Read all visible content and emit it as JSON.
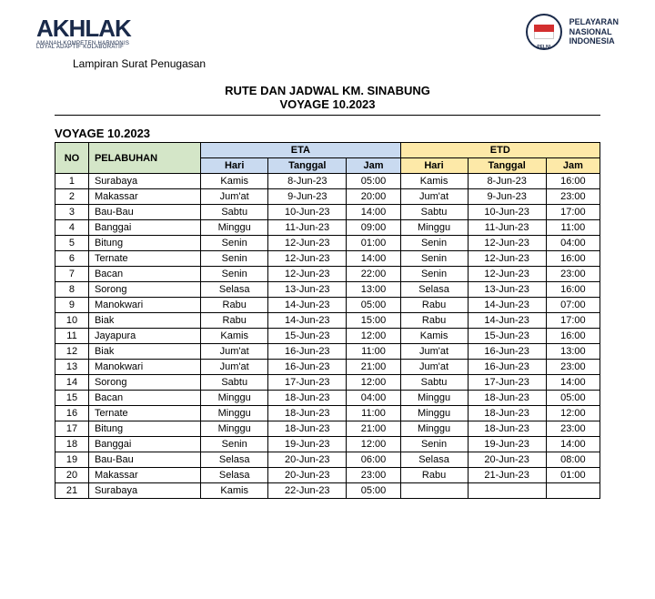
{
  "header": {
    "logo_text": "AKHLAK",
    "logo_subtitle1": "AMANAH KOMPETEN HARMONIS",
    "logo_subtitle2": "LOYAL ADAPTIF KOLABORATIF",
    "pelni_label": "PELNI",
    "company_line1": "PELAYARAN",
    "company_line2": "NASIONAL",
    "company_line3": "INDONESIA"
  },
  "lampiran": "Lampiran Surat Penugasan",
  "title_line1": "RUTE DAN JADWAL KM. SINABUNG",
  "title_line2": "VOYAGE 10.2023",
  "voyage_label": "VOYAGE 10.2023",
  "table": {
    "headers": {
      "no": "NO",
      "pelabuhan": "PELABUHAN",
      "eta": "ETA",
      "etd": "ETD",
      "hari": "Hari",
      "tanggal": "Tanggal",
      "jam": "Jam"
    },
    "rows": [
      {
        "no": "1",
        "pelabuhan": "Surabaya",
        "eta_hari": "Kamis",
        "eta_tanggal": "8-Jun-23",
        "eta_jam": "05:00",
        "etd_hari": "Kamis",
        "etd_tanggal": "8-Jun-23",
        "etd_jam": "16:00"
      },
      {
        "no": "2",
        "pelabuhan": "Makassar",
        "eta_hari": "Jum'at",
        "eta_tanggal": "9-Jun-23",
        "eta_jam": "20:00",
        "etd_hari": "Jum'at",
        "etd_tanggal": "9-Jun-23",
        "etd_jam": "23:00"
      },
      {
        "no": "3",
        "pelabuhan": "Bau-Bau",
        "eta_hari": "Sabtu",
        "eta_tanggal": "10-Jun-23",
        "eta_jam": "14:00",
        "etd_hari": "Sabtu",
        "etd_tanggal": "10-Jun-23",
        "etd_jam": "17:00"
      },
      {
        "no": "4",
        "pelabuhan": "Banggai",
        "eta_hari": "Minggu",
        "eta_tanggal": "11-Jun-23",
        "eta_jam": "09:00",
        "etd_hari": "Minggu",
        "etd_tanggal": "11-Jun-23",
        "etd_jam": "11:00"
      },
      {
        "no": "5",
        "pelabuhan": "Bitung",
        "eta_hari": "Senin",
        "eta_tanggal": "12-Jun-23",
        "eta_jam": "01:00",
        "etd_hari": "Senin",
        "etd_tanggal": "12-Jun-23",
        "etd_jam": "04:00"
      },
      {
        "no": "6",
        "pelabuhan": "Ternate",
        "eta_hari": "Senin",
        "eta_tanggal": "12-Jun-23",
        "eta_jam": "14:00",
        "etd_hari": "Senin",
        "etd_tanggal": "12-Jun-23",
        "etd_jam": "16:00"
      },
      {
        "no": "7",
        "pelabuhan": "Bacan",
        "eta_hari": "Senin",
        "eta_tanggal": "12-Jun-23",
        "eta_jam": "22:00",
        "etd_hari": "Senin",
        "etd_tanggal": "12-Jun-23",
        "etd_jam": "23:00"
      },
      {
        "no": "8",
        "pelabuhan": "Sorong",
        "eta_hari": "Selasa",
        "eta_tanggal": "13-Jun-23",
        "eta_jam": "13:00",
        "etd_hari": "Selasa",
        "etd_tanggal": "13-Jun-23",
        "etd_jam": "16:00"
      },
      {
        "no": "9",
        "pelabuhan": "Manokwari",
        "eta_hari": "Rabu",
        "eta_tanggal": "14-Jun-23",
        "eta_jam": "05:00",
        "etd_hari": "Rabu",
        "etd_tanggal": "14-Jun-23",
        "etd_jam": "07:00"
      },
      {
        "no": "10",
        "pelabuhan": "Biak",
        "eta_hari": "Rabu",
        "eta_tanggal": "14-Jun-23",
        "eta_jam": "15:00",
        "etd_hari": "Rabu",
        "etd_tanggal": "14-Jun-23",
        "etd_jam": "17:00"
      },
      {
        "no": "11",
        "pelabuhan": "Jayapura",
        "eta_hari": "Kamis",
        "eta_tanggal": "15-Jun-23",
        "eta_jam": "12:00",
        "etd_hari": "Kamis",
        "etd_tanggal": "15-Jun-23",
        "etd_jam": "16:00"
      },
      {
        "no": "12",
        "pelabuhan": "Biak",
        "eta_hari": "Jum'at",
        "eta_tanggal": "16-Jun-23",
        "eta_jam": "11:00",
        "etd_hari": "Jum'at",
        "etd_tanggal": "16-Jun-23",
        "etd_jam": "13:00"
      },
      {
        "no": "13",
        "pelabuhan": "Manokwari",
        "eta_hari": "Jum'at",
        "eta_tanggal": "16-Jun-23",
        "eta_jam": "21:00",
        "etd_hari": "Jum'at",
        "etd_tanggal": "16-Jun-23",
        "etd_jam": "23:00"
      },
      {
        "no": "14",
        "pelabuhan": "Sorong",
        "eta_hari": "Sabtu",
        "eta_tanggal": "17-Jun-23",
        "eta_jam": "12:00",
        "etd_hari": "Sabtu",
        "etd_tanggal": "17-Jun-23",
        "etd_jam": "14:00"
      },
      {
        "no": "15",
        "pelabuhan": "Bacan",
        "eta_hari": "Minggu",
        "eta_tanggal": "18-Jun-23",
        "eta_jam": "04:00",
        "etd_hari": "Minggu",
        "etd_tanggal": "18-Jun-23",
        "etd_jam": "05:00"
      },
      {
        "no": "16",
        "pelabuhan": "Ternate",
        "eta_hari": "Minggu",
        "eta_tanggal": "18-Jun-23",
        "eta_jam": "11:00",
        "etd_hari": "Minggu",
        "etd_tanggal": "18-Jun-23",
        "etd_jam": "12:00"
      },
      {
        "no": "17",
        "pelabuhan": "Bitung",
        "eta_hari": "Minggu",
        "eta_tanggal": "18-Jun-23",
        "eta_jam": "21:00",
        "etd_hari": "Minggu",
        "etd_tanggal": "18-Jun-23",
        "etd_jam": "23:00"
      },
      {
        "no": "18",
        "pelabuhan": "Banggai",
        "eta_hari": "Senin",
        "eta_tanggal": "19-Jun-23",
        "eta_jam": "12:00",
        "etd_hari": "Senin",
        "etd_tanggal": "19-Jun-23",
        "etd_jam": "14:00"
      },
      {
        "no": "19",
        "pelabuhan": "Bau-Bau",
        "eta_hari": "Selasa",
        "eta_tanggal": "20-Jun-23",
        "eta_jam": "06:00",
        "etd_hari": "Selasa",
        "etd_tanggal": "20-Jun-23",
        "etd_jam": "08:00"
      },
      {
        "no": "20",
        "pelabuhan": "Makassar",
        "eta_hari": "Selasa",
        "eta_tanggal": "20-Jun-23",
        "eta_jam": "23:00",
        "etd_hari": "Rabu",
        "etd_tanggal": "21-Jun-23",
        "etd_jam": "01:00"
      },
      {
        "no": "21",
        "pelabuhan": "Surabaya",
        "eta_hari": "Kamis",
        "eta_tanggal": "22-Jun-23",
        "eta_jam": "05:00",
        "etd_hari": "",
        "etd_tanggal": "",
        "etd_jam": ""
      }
    ]
  }
}
